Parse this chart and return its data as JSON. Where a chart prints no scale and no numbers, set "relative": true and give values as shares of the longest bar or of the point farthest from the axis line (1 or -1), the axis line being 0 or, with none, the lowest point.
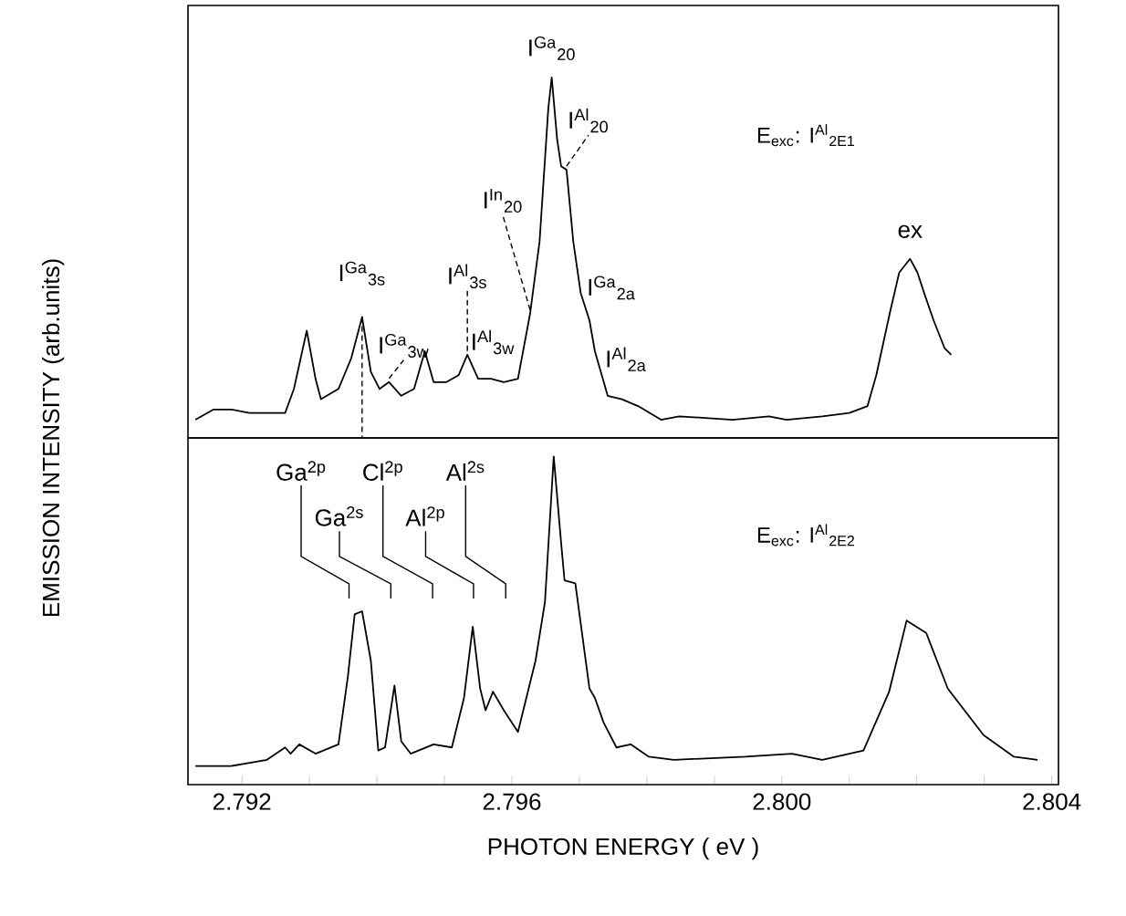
{
  "chart_data": [
    {
      "type": "line",
      "relative": true,
      "xlim": [
        2.7912,
        2.8041
      ],
      "tick_labels": false,
      "ylabel": "EMISSION INTENSITY (arb.units)",
      "color": "#000000",
      "x": [
        2.79131,
        2.79158,
        2.79184,
        2.79211,
        2.79264,
        2.79277,
        2.79296,
        2.79309,
        2.79317,
        2.79343,
        2.79362,
        2.79378,
        2.79391,
        2.79404,
        2.79418,
        2.79436,
        2.79455,
        2.79471,
        2.79484,
        2.79503,
        2.79521,
        2.79534,
        2.7955,
        2.79569,
        2.79588,
        2.79609,
        2.79627,
        2.79641,
        2.79654,
        2.79659,
        2.79667,
        2.79673,
        2.79681,
        2.79691,
        2.79702,
        2.79715,
        2.79723,
        2.79742,
        2.79763,
        2.79787,
        2.79821,
        2.79848,
        2.79927,
        2.79981,
        2.80007,
        2.8006,
        2.801,
        2.80127,
        2.8014,
        2.80161,
        2.80174,
        2.8019,
        2.80201,
        2.80211,
        2.80225,
        2.80241,
        2.80251
      ],
      "values": [
        0,
        0.03,
        0.03,
        0.02,
        0.02,
        0.09,
        0.26,
        0.12,
        0.06,
        0.09,
        0.18,
        0.3,
        0.14,
        0.09,
        0.11,
        0.07,
        0.09,
        0.2,
        0.11,
        0.11,
        0.13,
        0.19,
        0.12,
        0.12,
        0.11,
        0.12,
        0.31,
        0.52,
        0.91,
        1,
        0.82,
        0.74,
        0.73,
        0.52,
        0.37,
        0.29,
        0.2,
        0.07,
        0.06,
        0.04,
        0,
        0.01,
        0,
        0.01,
        0,
        0.01,
        0.02,
        0.04,
        0.13,
        0.32,
        0.43,
        0.47,
        0.43,
        0.37,
        0.29,
        0.21,
        0.19
      ],
      "annotations": [
        {
          "text": "I$^{Ga}$$_{3s}$",
          "x": 2.79378,
          "y": 0.3
        },
        {
          "text": "I$^{Ga}$$_{3w}$",
          "x": 2.79418,
          "y": 0.11
        },
        {
          "text": "I$^{Al}$$_{3s}$",
          "x": 2.79534,
          "y": 0.19
        },
        {
          "text": "I$^{Al}$$_{3w}$",
          "x": 2.79569,
          "y": 0.12
        },
        {
          "text": "I$^{In}$$_{20}$",
          "x": 2.79627,
          "y": 0.31
        },
        {
          "text": "I$^{Ga}$$_{20}$",
          "x": 2.79659,
          "y": 1
        },
        {
          "text": "I$^{Al}$$_{20}$",
          "x": 2.79681,
          "y": 0.73
        },
        {
          "text": "I$^{Ga}$$_{2a}$",
          "x": 2.79715,
          "y": 0.29
        },
        {
          "text": "I$^{Al}$$_{2a}$",
          "x": 2.79742,
          "y": 0.07
        },
        {
          "text": "ex",
          "x": 2.8019,
          "y": 0.47
        },
        "E$_{exc}$: I$^{Al}$$_{2E1}$"
      ]
    },
    {
      "type": "line",
      "relative": true,
      "xlim": [
        2.7912,
        2.8041
      ],
      "tick_labels": "x",
      "xlabel": "PHOTON ENERGY ( eV )",
      "color": "#000000",
      "xticks": [
        2.792,
        {
          "value": 2.793,
          "label": null
        },
        {
          "value": 2.794,
          "label": null
        },
        {
          "value": 2.795,
          "label": null
        },
        2.796,
        {
          "value": 2.797,
          "label": null
        },
        {
          "value": 2.798,
          "label": null
        },
        {
          "value": 2.799,
          "label": null
        },
        {
          "value": 2.8,
          "label": "2.800"
        },
        {
          "value": 2.801,
          "label": null
        },
        {
          "value": 2.802,
          "label": null
        },
        {
          "value": 2.803,
          "label": null
        },
        2.804
      ],
      "x": [
        2.79131,
        2.79184,
        2.79237,
        2.79264,
        2.79272,
        2.79285,
        2.79309,
        2.79343,
        2.79357,
        2.79367,
        2.79378,
        2.79391,
        2.79402,
        2.79412,
        2.79426,
        2.79436,
        2.7945,
        2.79484,
        2.79511,
        2.79529,
        2.79542,
        2.79553,
        2.79561,
        2.79572,
        2.79588,
        2.79609,
        2.79635,
        2.79649,
        2.79662,
        2.79673,
        2.79678,
        2.79694,
        2.79715,
        2.79723,
        2.79736,
        2.79755,
        2.79776,
        2.79803,
        2.7984,
        2.79946,
        2.80015,
        2.8006,
        2.80121,
        2.80159,
        2.80185,
        2.80214,
        2.80246,
        2.80299,
        2.80344,
        2.80379
      ],
      "values": [
        0,
        0,
        0.02,
        0.06,
        0.04,
        0.07,
        0.04,
        0.07,
        0.29,
        0.49,
        0.5,
        0.34,
        0.05,
        0.06,
        0.26,
        0.08,
        0.04,
        0.07,
        0.06,
        0.22,
        0.45,
        0.25,
        0.18,
        0.24,
        0.18,
        0.11,
        0.34,
        0.53,
        1,
        0.72,
        0.6,
        0.59,
        0.25,
        0.22,
        0.14,
        0.06,
        0.07,
        0.03,
        0.02,
        0.03,
        0.04,
        0.02,
        0.05,
        0.24,
        0.47,
        0.43,
        0.25,
        0.1,
        0.03,
        0.02
      ],
      "annotations": [
        "Ga$^{2p}$",
        "Ga$^{2s}$",
        "Cl$^{2p}$",
        "Al$^{2p}$",
        "Al$^{2s}$",
        "E$_{exc}$: I$^{Al}$$_{2E2}$"
      ]
    }
  ]
}
